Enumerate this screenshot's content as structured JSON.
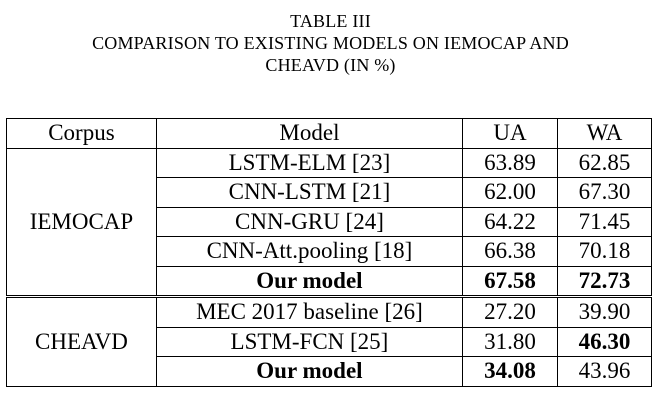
{
  "caption": {
    "line1": "TABLE III",
    "line2": "COMPARISON TO EXISTING MODELS ON IEMOCAP AND",
    "line3": "CHEAVD (IN %)"
  },
  "header": {
    "corpus": "Corpus",
    "model": "Model",
    "ua": "UA",
    "wa": "WA"
  },
  "groups": [
    {
      "corpus": "IEMOCAP",
      "rows": [
        {
          "model": "LSTM-ELM [23]",
          "ua": "63.89",
          "wa": "62.85"
        },
        {
          "model": "CNN-LSTM [21]",
          "ua": "62.00",
          "wa": "67.30"
        },
        {
          "model": "CNN-GRU [24]",
          "ua": "64.22",
          "wa": "71.45"
        },
        {
          "model": "CNN-Att.pooling [18]",
          "ua": "66.38",
          "wa": "70.18"
        },
        {
          "model": "Our model",
          "ua": "67.58",
          "wa": "72.73"
        }
      ]
    },
    {
      "corpus": "CHEAVD",
      "rows": [
        {
          "model": "MEC 2017 baseline [26]",
          "ua": "27.20",
          "wa": "39.90"
        },
        {
          "model": "LSTM-FCN [25]",
          "ua": "31.80",
          "wa": "46.30"
        },
        {
          "model": "Our model",
          "ua": "34.08",
          "wa": "43.96"
        }
      ]
    }
  ]
}
